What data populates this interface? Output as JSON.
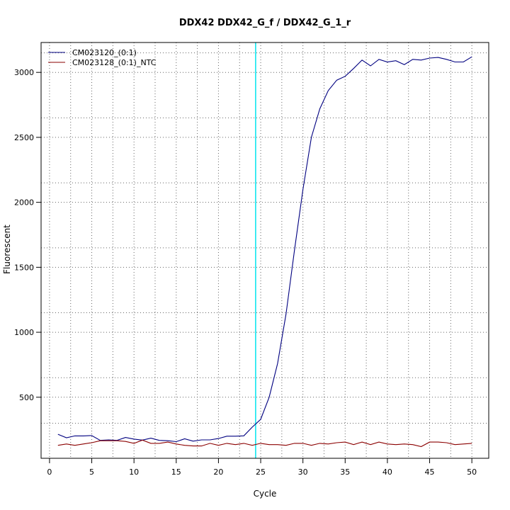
{
  "chart_data": {
    "type": "line",
    "title": "DDX42  DDX42_G_f / DDX42_G_1_r",
    "xlabel": "Cycle",
    "ylabel": "Fluorescent",
    "xlim": [
      -1,
      52
    ],
    "ylim": [
      30,
      3230
    ],
    "xticks": [
      0,
      5,
      10,
      15,
      20,
      25,
      30,
      35,
      40,
      45,
      50
    ],
    "yticks": [
      500,
      1000,
      1500,
      2000,
      2500,
      3000
    ],
    "x_grid_lines": [
      2.5,
      7.5,
      12.5,
      17.5,
      22.5,
      27.5,
      32.5,
      37.5,
      42.5,
      47.5
    ],
    "y_grid_lines": [
      300,
      500,
      650,
      1000,
      1150,
      1500,
      1650,
      2000,
      2150,
      2500,
      2650,
      3000,
      3150
    ],
    "grid": true,
    "legend_position": "top-left",
    "threshold": {
      "x": 24.4,
      "color": "#00e5ee"
    },
    "x": [
      1,
      2,
      3,
      4,
      5,
      6,
      7,
      8,
      9,
      10,
      11,
      12,
      13,
      14,
      15,
      16,
      17,
      18,
      19,
      20,
      21,
      22,
      23,
      24,
      25,
      26,
      27,
      28,
      29,
      30,
      31,
      32,
      33,
      34,
      35,
      36,
      37,
      38,
      39,
      40,
      41,
      42,
      43,
      44,
      45,
      46,
      47,
      48,
      49,
      50
    ],
    "series": [
      {
        "name": "CM023120_(0:1)",
        "color": "#000080",
        "values": [
          215,
          188,
          202,
          202,
          205,
          168,
          172,
          168,
          190,
          178,
          170,
          185,
          168,
          165,
          158,
          180,
          162,
          172,
          172,
          182,
          200,
          200,
          203,
          270,
          330,
          500,
          760,
          1140,
          1630,
          2100,
          2500,
          2720,
          2860,
          2940,
          2970,
          3030,
          3095,
          3050,
          3100,
          3080,
          3090,
          3060,
          3100,
          3095,
          3110,
          3115,
          3100,
          3080,
          3080,
          3120
        ]
      },
      {
        "name": "CM023128_(0:1)_NTC",
        "color": "#8b0000",
        "values": [
          130,
          140,
          130,
          140,
          150,
          165,
          165,
          165,
          160,
          145,
          170,
          145,
          145,
          155,
          140,
          130,
          125,
          125,
          145,
          130,
          145,
          135,
          145,
          130,
          145,
          135,
          135,
          130,
          145,
          145,
          130,
          145,
          140,
          150,
          155,
          135,
          155,
          135,
          155,
          140,
          135,
          140,
          135,
          120,
          155,
          155,
          150,
          135,
          140,
          145
        ]
      }
    ]
  }
}
